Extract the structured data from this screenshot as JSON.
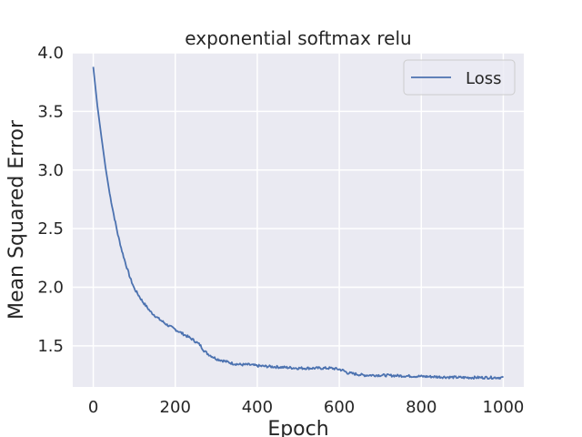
{
  "chart_data": {
    "type": "line",
    "title": "exponential softmax relu",
    "xlabel": "Epoch",
    "ylabel": "Mean Squared Error",
    "xlim": [
      -50,
      1050
    ],
    "ylim": [
      1.15,
      4.0
    ],
    "xticks": [
      0,
      200,
      400,
      600,
      800,
      1000
    ],
    "yticks": [
      1.5,
      2.0,
      2.5,
      3.0,
      3.5,
      4.0
    ],
    "xtick_labels": [
      "0",
      "200",
      "400",
      "600",
      "800",
      "1000"
    ],
    "ytick_labels": [
      "1.5",
      "2.0",
      "2.5",
      "3.0",
      "3.5",
      "4.0"
    ],
    "grid": true,
    "legend_position": "upper right",
    "background_color": "#eaeaf2",
    "grid_color": "#ffffff",
    "series": [
      {
        "name": "Loss",
        "color": "#4c72b0",
        "x": [
          0,
          10,
          20,
          30,
          40,
          50,
          60,
          70,
          80,
          90,
          100,
          120,
          140,
          160,
          180,
          200,
          220,
          240,
          260,
          270,
          280,
          300,
          320,
          340,
          360,
          380,
          400,
          450,
          500,
          550,
          580,
          600,
          610,
          620,
          640,
          660,
          700,
          800,
          900,
          1000
        ],
        "y": [
          3.88,
          3.55,
          3.28,
          3.02,
          2.8,
          2.62,
          2.45,
          2.31,
          2.19,
          2.08,
          1.99,
          1.88,
          1.79,
          1.73,
          1.68,
          1.64,
          1.6,
          1.56,
          1.51,
          1.46,
          1.43,
          1.39,
          1.37,
          1.35,
          1.34,
          1.34,
          1.33,
          1.32,
          1.31,
          1.31,
          1.31,
          1.3,
          1.29,
          1.27,
          1.26,
          1.25,
          1.25,
          1.24,
          1.23,
          1.23
        ]
      }
    ]
  }
}
